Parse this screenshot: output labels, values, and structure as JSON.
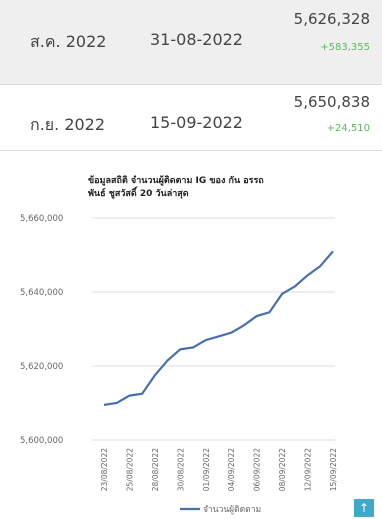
{
  "table": {
    "rows": [
      [
        "ส.ค. 2022",
        "31-08-2022",
        "5,626,328",
        "+583,355"
      ],
      [
        "ก.ย. 2022",
        "15-09-2022",
        "5,650,838",
        "+24,510"
      ]
    ]
  },
  "chart_data": {
    "type": "line",
    "title": "ข้อมูลสถิติ จำนวนผู้ติดตาม IG ของ กัน อรรถพันธ์ ชูสวัสดิ์ 20 วันล่าสุด",
    "categories": [
      "23/08/2022",
      null,
      "25/08/2022",
      null,
      "28/08/2022",
      null,
      "30/08/2022",
      null,
      "01/09/2022",
      null,
      "04/09/2022",
      null,
      "06/09/2022",
      null,
      "08/09/2022",
      null,
      "12/09/2022",
      null,
      "15/09/2022"
    ],
    "series": [
      {
        "name": "จำนวนผู้ติดตาม",
        "color": "#4a6fb0",
        "values": [
          5609500,
          5610000,
          5612000,
          5612500,
          5617500,
          5621500,
          5624500,
          5625000,
          5627000,
          5628000,
          5629000,
          5631000,
          5633500,
          5634500,
          5639500,
          5641500,
          5644500,
          5647000,
          5651000
        ]
      }
    ],
    "ylim": [
      5600000,
      5660000
    ],
    "yticks": [
      {
        "value": 5600000,
        "label": "5,600,000"
      },
      {
        "value": 5620000,
        "label": "5,620,000"
      },
      {
        "value": 5640000,
        "label": "5,640,000"
      },
      {
        "value": 5660000,
        "label": "5,660,000"
      }
    ],
    "grid": true
  }
}
